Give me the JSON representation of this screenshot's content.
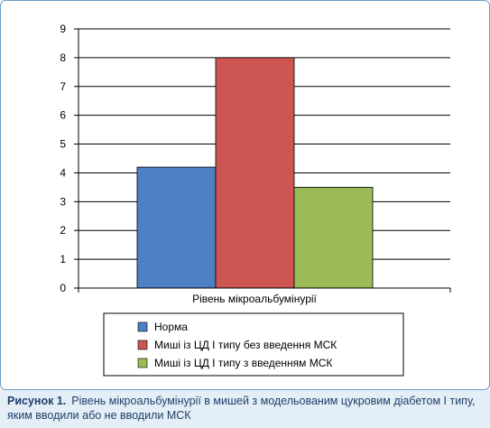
{
  "chart_data": {
    "type": "bar",
    "categories": [
      "Рівень мікроальбумінурії"
    ],
    "series": [
      {
        "name": "Норма",
        "values": [
          4.2
        ],
        "color": "#4e81c4"
      },
      {
        "name": "Миші із ЦД І типу без введення МСК",
        "values": [
          8
        ],
        "color": "#cd5552"
      },
      {
        "name": "Миші із ЦД І типу з введенням МСК",
        "values": [
          3.5
        ],
        "color": "#9bbb59"
      }
    ],
    "y_ticks": [
      "0",
      "1",
      "2",
      "3",
      "4",
      "5",
      "6",
      "7",
      "8",
      "9"
    ],
    "ylim": [
      0,
      9
    ],
    "grid": true,
    "legend_position": "bottom"
  },
  "caption": {
    "label": "Рисунок 1.",
    "text": "Рівень мікроальбумінурії в мишей з модельованим цукровим діабетом І типу, яким вводили або не вводили МСК"
  },
  "colors": {
    "frame_border": "#6f9ec4",
    "caption_background": "#e3eef7",
    "caption_text": "#1f3f6a"
  }
}
